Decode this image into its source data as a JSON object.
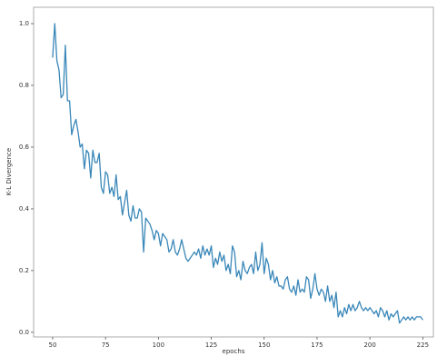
{
  "chart_data": {
    "type": "line",
    "xlabel": "epochs",
    "ylabel": "K-L Divergence",
    "color": "#3a87b8",
    "x": [
      50,
      51,
      52,
      53,
      54,
      55,
      56,
      57,
      58,
      59,
      60,
      61,
      62,
      63,
      64,
      65,
      66,
      67,
      68,
      69,
      70,
      71,
      72,
      73,
      74,
      75,
      76,
      77,
      78,
      79,
      80,
      81,
      82,
      83,
      84,
      85,
      86,
      87,
      88,
      89,
      90,
      91,
      92,
      93,
      94,
      95,
      96,
      97,
      98,
      99,
      100,
      101,
      102,
      103,
      104,
      105,
      106,
      107,
      108,
      109,
      110,
      111,
      112,
      113,
      114,
      115,
      116,
      117,
      118,
      119,
      120,
      121,
      122,
      123,
      124,
      125,
      126,
      127,
      128,
      129,
      130,
      131,
      132,
      133,
      134,
      135,
      136,
      137,
      138,
      139,
      140,
      141,
      142,
      143,
      144,
      145,
      146,
      147,
      148,
      149,
      150,
      151,
      152,
      153,
      154,
      155,
      156,
      157,
      158,
      159,
      160,
      161,
      162,
      163,
      164,
      165,
      166,
      167,
      168,
      169,
      170,
      171,
      172,
      173,
      174,
      175,
      176,
      177,
      178,
      179,
      180,
      181,
      182,
      183,
      184,
      185,
      186,
      187,
      188,
      189,
      190,
      191,
      192,
      193,
      194,
      195,
      196,
      197,
      198,
      199,
      200,
      201,
      202,
      203,
      204,
      205,
      206,
      207,
      208,
      209,
      210,
      211,
      212,
      213,
      214,
      215,
      216,
      217,
      218,
      219,
      220,
      221,
      222,
      223,
      224,
      225
    ],
    "values": [
      0.89,
      1.0,
      0.88,
      0.85,
      0.76,
      0.77,
      0.93,
      0.75,
      0.75,
      0.64,
      0.67,
      0.69,
      0.65,
      0.6,
      0.61,
      0.53,
      0.59,
      0.58,
      0.5,
      0.59,
      0.55,
      0.55,
      0.58,
      0.47,
      0.45,
      0.52,
      0.51,
      0.45,
      0.47,
      0.44,
      0.51,
      0.43,
      0.44,
      0.38,
      0.42,
      0.46,
      0.38,
      0.36,
      0.41,
      0.37,
      0.37,
      0.4,
      0.39,
      0.26,
      0.37,
      0.36,
      0.35,
      0.33,
      0.3,
      0.33,
      0.32,
      0.28,
      0.32,
      0.31,
      0.3,
      0.26,
      0.27,
      0.3,
      0.26,
      0.25,
      0.27,
      0.3,
      0.27,
      0.24,
      0.23,
      0.24,
      0.25,
      0.26,
      0.25,
      0.27,
      0.24,
      0.28,
      0.25,
      0.27,
      0.25,
      0.28,
      0.21,
      0.24,
      0.22,
      0.26,
      0.23,
      0.25,
      0.2,
      0.22,
      0.19,
      0.28,
      0.26,
      0.18,
      0.2,
      0.17,
      0.23,
      0.2,
      0.19,
      0.21,
      0.22,
      0.19,
      0.26,
      0.2,
      0.22,
      0.29,
      0.19,
      0.24,
      0.22,
      0.17,
      0.2,
      0.16,
      0.18,
      0.15,
      0.15,
      0.14,
      0.17,
      0.18,
      0.14,
      0.13,
      0.15,
      0.12,
      0.17,
      0.13,
      0.14,
      0.13,
      0.18,
      0.17,
      0.11,
      0.14,
      0.19,
      0.14,
      0.12,
      0.14,
      0.13,
      0.1,
      0.15,
      0.1,
      0.12,
      0.08,
      0.13,
      0.05,
      0.07,
      0.05,
      0.08,
      0.06,
      0.09,
      0.07,
      0.09,
      0.07,
      0.08,
      0.1,
      0.08,
      0.07,
      0.08,
      0.07,
      0.08,
      0.07,
      0.06,
      0.07,
      0.05,
      0.08,
      0.07,
      0.05,
      0.07,
      0.04,
      0.06,
      0.05,
      0.06,
      0.07,
      0.03,
      0.04,
      0.05,
      0.04,
      0.05,
      0.04,
      0.05,
      0.04,
      0.05,
      0.05,
      0.05,
      0.04
    ],
    "xlim": [
      41,
      230
    ],
    "xticks": [
      50,
      75,
      100,
      125,
      150,
      175,
      200,
      225
    ],
    "ylim": [
      -0.015,
      1.053
    ],
    "yticks": [
      {
        "value": 0,
        "label": "0.0"
      },
      {
        "value": 0.2,
        "label": "0.2"
      },
      {
        "value": 0.4,
        "label": "0.4"
      },
      {
        "value": 0.6,
        "label": "0.6"
      },
      {
        "value": 0.8,
        "label": "0.8"
      },
      {
        "value": 1.0,
        "label": "1.0"
      }
    ]
  }
}
